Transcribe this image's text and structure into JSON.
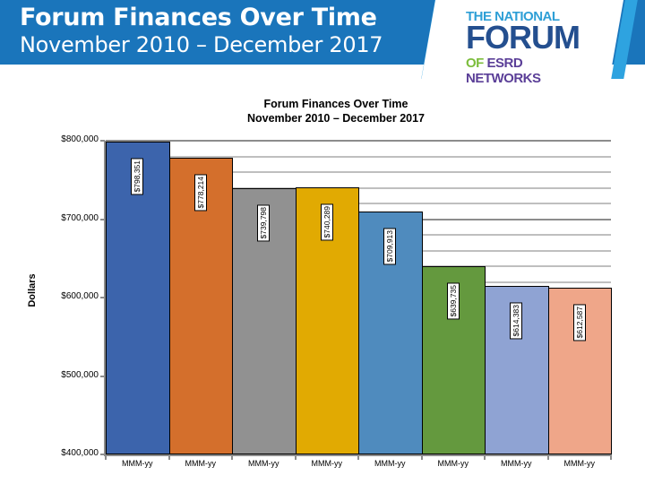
{
  "header": {
    "title": "Forum Finances Over Time",
    "subtitle": "November 2010 – December 2017",
    "band_color": "#1a75bb"
  },
  "logo": {
    "line1": "THE NATIONAL",
    "line2": "FORUM",
    "line3_of": "OF",
    "line3_rest": "ESRD NETWORKS"
  },
  "chart_data": {
    "type": "bar",
    "title": "Forum Finances Over Time",
    "subtitle": "November 2010 – December 2017",
    "xlabel": "",
    "ylabel": "Dollars",
    "ylim": [
      400000,
      800000
    ],
    "y_ticks": [
      "$800,000",
      "$700,000",
      "$600,000",
      "$500,000",
      "$400,000"
    ],
    "y_tick_values": [
      800000,
      700000,
      600000,
      500000,
      400000
    ],
    "grid": true,
    "legend": "none",
    "categories": [
      "MMM-yy",
      "MMM-yy",
      "MMM-yy",
      "MMM-yy",
      "MMM-yy",
      "MMM-yy",
      "MMM-yy",
      "MMM-yy"
    ],
    "values": [
      798351,
      778214,
      739798,
      740289,
      709913,
      639735,
      614383,
      612587
    ],
    "data_labels": [
      "$798,351",
      "$778,214",
      "$739,798",
      "$740,289",
      "$709,913",
      "$639,735",
      "$614,383",
      "$612,587"
    ],
    "colors": [
      "#3c64ac",
      "#d46f2c",
      "#919191",
      "#e1aa02",
      "#4f8bbe",
      "#64993e",
      "#8fa3d3",
      "#efa689"
    ]
  }
}
